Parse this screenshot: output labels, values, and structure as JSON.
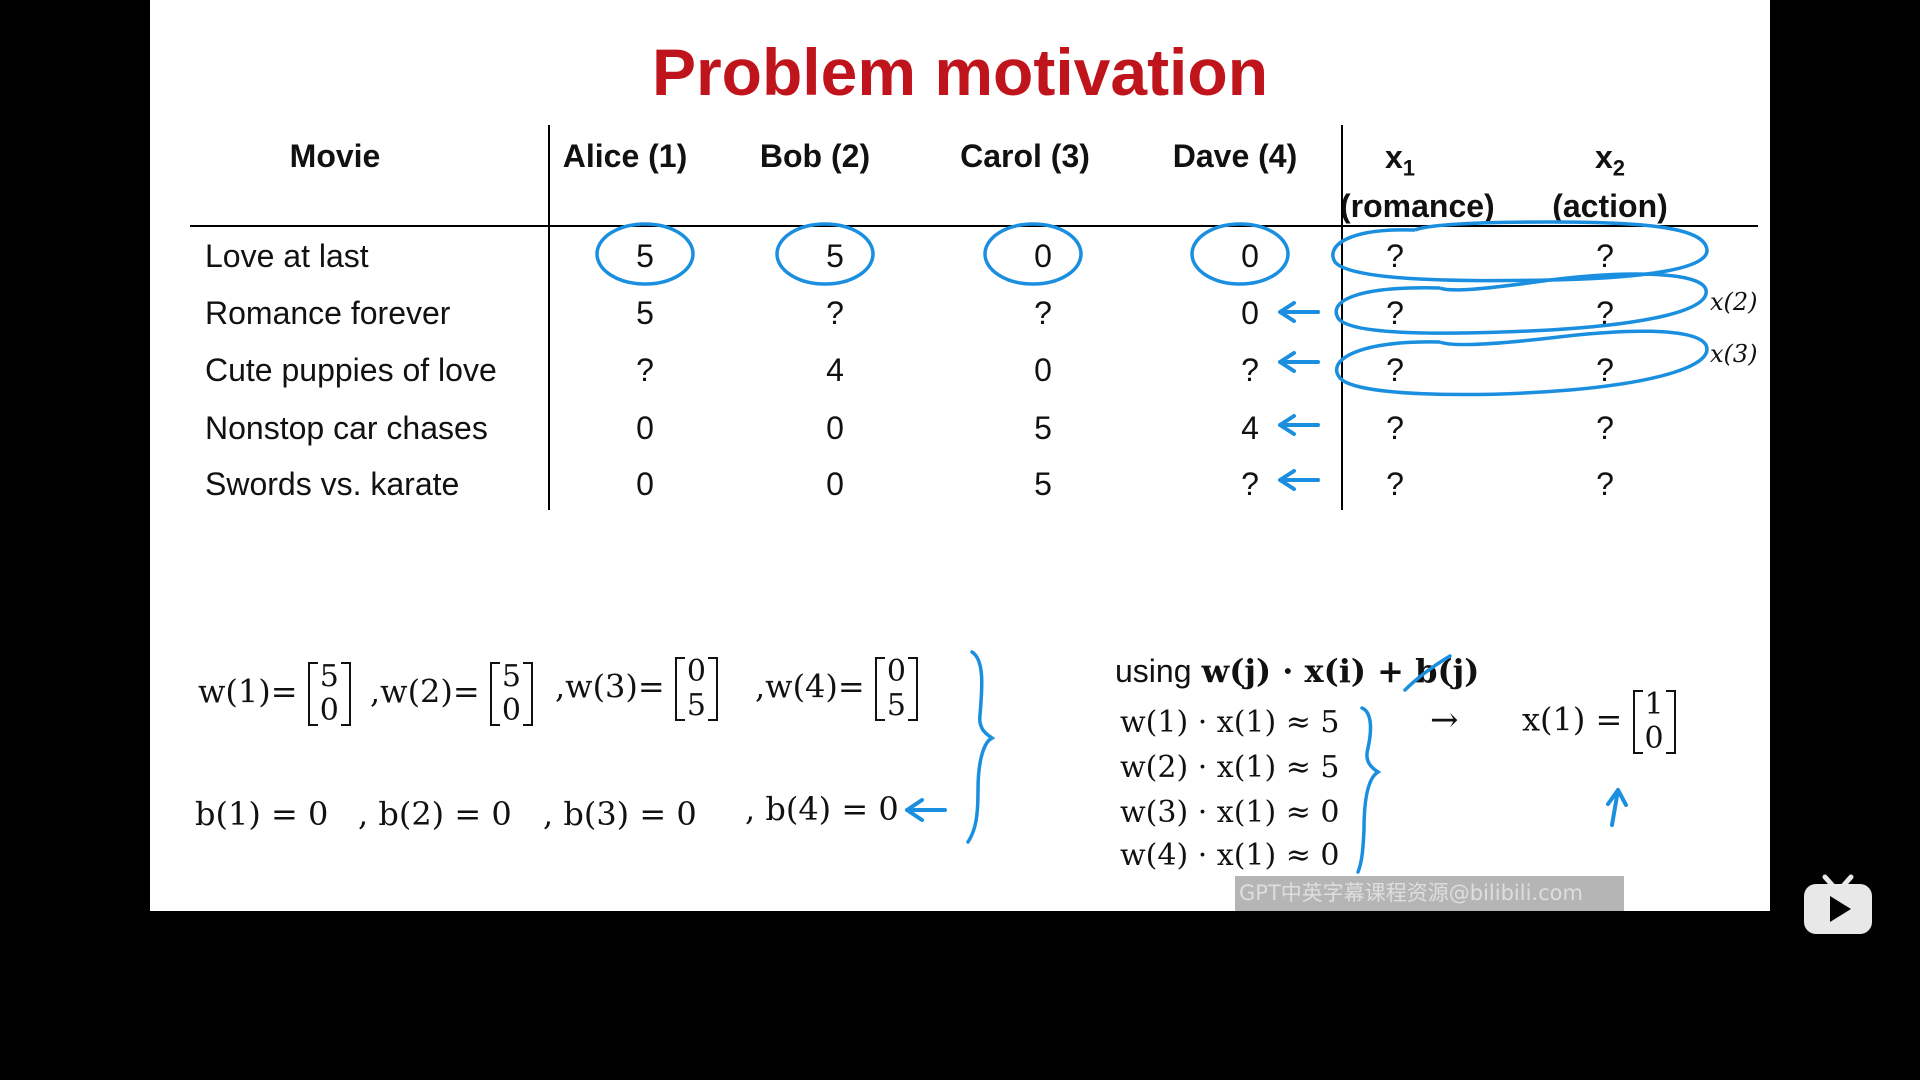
{
  "slide": {
    "title": "Problem motivation",
    "accent_color": "#c0141c",
    "annotation_color": "#1a8fe0"
  },
  "table": {
    "headers": {
      "movie": "Movie",
      "users": [
        "Alice (1)",
        "Bob (2)",
        "Carol (3)",
        "Dave (4)"
      ],
      "features": [
        {
          "name": "x",
          "sub": "1",
          "label": "(romance)"
        },
        {
          "name": "x",
          "sub": "2",
          "label": "(action)"
        }
      ]
    },
    "rows": [
      {
        "movie": "Love at last",
        "ratings": [
          "5",
          "5",
          "0",
          "0"
        ],
        "features": [
          "?",
          "?"
        ]
      },
      {
        "movie": "Romance forever",
        "ratings": [
          "5",
          "?",
          "?",
          "0"
        ],
        "features": [
          "?",
          "?"
        ]
      },
      {
        "movie": "Cute puppies of love",
        "ratings": [
          "?",
          "4",
          "0",
          "?"
        ],
        "features": [
          "?",
          "?"
        ]
      },
      {
        "movie": "Nonstop car chases",
        "ratings": [
          "0",
          "0",
          "5",
          "4"
        ],
        "features": [
          "?",
          "?"
        ]
      },
      {
        "movie": "Swords vs. karate",
        "ratings": [
          "0",
          "0",
          "5",
          "?"
        ],
        "features": [
          "?",
          "?"
        ]
      }
    ],
    "row_labels": [
      "x(2)",
      "x(3)"
    ]
  },
  "params": {
    "w": [
      {
        "label": "w(1)=",
        "vec": [
          "5",
          "0"
        ]
      },
      {
        "label": ",w(2)=",
        "vec": [
          "5",
          "0"
        ]
      },
      {
        "label": ",w(3)=",
        "vec": [
          "0",
          "5"
        ]
      },
      {
        "label": ",w(4)=",
        "vec": [
          "0",
          "5"
        ]
      }
    ],
    "b": [
      "b(1) = 0",
      ", b(2) = 0",
      ", b(3) = 0",
      ", b(4) = 0"
    ]
  },
  "derivation": {
    "using_word": "using",
    "formula": "w(j) · x(i) + b(j)",
    "equations": [
      "w(1) · x(1) ≈ 5",
      "w(2) · x(1) ≈ 5",
      "w(3) · x(1) ≈ 0",
      "w(4) · x(1) ≈ 0"
    ],
    "arrow": "→",
    "result_label": "x(1) =",
    "result_vec": [
      "1",
      "0"
    ]
  },
  "watermark": "GPT中英字幕课程资源@bilibili.com",
  "player": {
    "play_icon": "bilibili-tv-play-icon"
  }
}
